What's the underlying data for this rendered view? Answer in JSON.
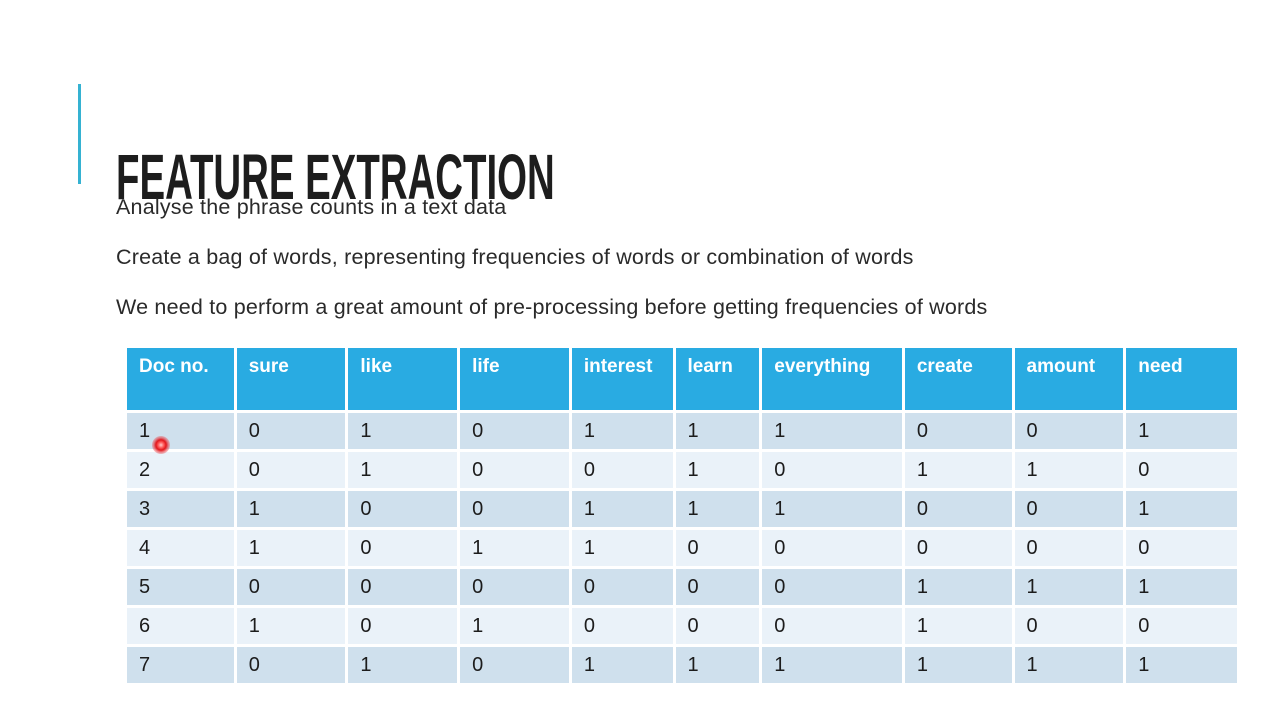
{
  "slide": {
    "title": "FEATURE EXTRACTION",
    "bullets": [
      "Analyse the phrase counts in a text data",
      "Create a bag of words, representing frequencies of words or combination of words",
      "We need to perform a great amount of pre-processing before getting frequencies of words"
    ]
  },
  "chart_data": {
    "type": "table",
    "title": "Bag of words document-term matrix",
    "columns": [
      "Doc no.",
      "sure",
      "like",
      "life",
      "interest",
      "learn",
      "everything",
      "create",
      "amount",
      "need"
    ],
    "rows": [
      [
        "1",
        "0",
        "1",
        "0",
        "1",
        "1",
        "1",
        "0",
        "0",
        "1"
      ],
      [
        "2",
        "0",
        "1",
        "0",
        "0",
        "1",
        "0",
        "1",
        "1",
        "0"
      ],
      [
        "3",
        "1",
        "0",
        "0",
        "1",
        "1",
        "1",
        "0",
        "0",
        "1"
      ],
      [
        "4",
        "1",
        "0",
        "1",
        "1",
        "0",
        "0",
        "0",
        "0",
        "0"
      ],
      [
        "5",
        "0",
        "0",
        "0",
        "0",
        "0",
        "0",
        "1",
        "1",
        "1"
      ],
      [
        "6",
        "1",
        "0",
        "1",
        "0",
        "0",
        "0",
        "1",
        "0",
        "0"
      ],
      [
        "7",
        "0",
        "1",
        "0",
        "1",
        "1",
        "1",
        "1",
        "1",
        "1"
      ]
    ]
  },
  "colors": {
    "accent_bar": "#35b2d2",
    "table_header_bg": "#29abe2",
    "table_header_text": "#ffffff",
    "row_odd_bg": "#cfe0ed",
    "row_even_bg": "#eaf2f9",
    "title_text": "#1d1d1d",
    "body_text": "#2a2a2a",
    "laser_dot": "#e1161c"
  },
  "annotations": {
    "laser_pointer": "red laser pointer dot over Doc no. 1 cell"
  }
}
